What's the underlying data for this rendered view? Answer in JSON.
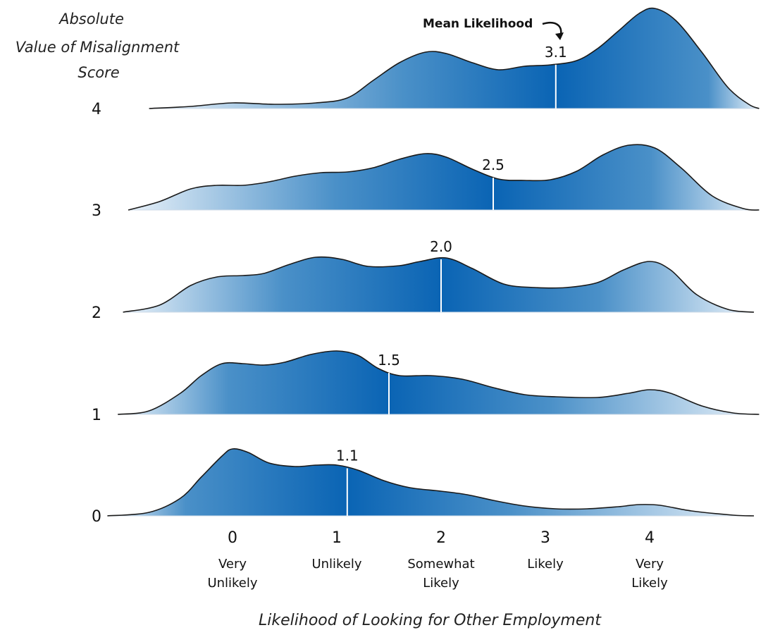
{
  "chart_data": {
    "type": "ridgeline",
    "y_title_lines": [
      "Absolute",
      "Value of Misalignment",
      "Score"
    ],
    "xlabel": "Likelihood of Looking for Other Employment",
    "x_ticks": [
      {
        "value": "0",
        "lines": [
          "Very",
          "Unlikely"
        ]
      },
      {
        "value": "1",
        "lines": [
          "Unlikely"
        ]
      },
      {
        "value": "2",
        "lines": [
          "Somewhat",
          "Likely"
        ]
      },
      {
        "value": "3",
        "lines": [
          "Likely"
        ]
      },
      {
        "value": "4",
        "lines": [
          "Very",
          "Likely"
        ]
      }
    ],
    "xlim": [
      -1.2,
      5.1
    ],
    "annotation": "Mean Likelihood",
    "series": [
      {
        "name": "0",
        "mean": 1.1,
        "mean_label": "1.1",
        "density_x": [
          -1.2,
          -0.8,
          -0.5,
          -0.3,
          -0.1,
          0.0,
          0.15,
          0.35,
          0.6,
          0.8,
          1.0,
          1.2,
          1.45,
          1.7,
          2.0,
          2.25,
          2.5,
          2.8,
          3.1,
          3.4,
          3.7,
          3.9,
          4.1,
          4.4,
          4.8,
          5.0
        ],
        "density_y": [
          0.0,
          0.05,
          0.25,
          0.55,
          0.85,
          0.95,
          0.9,
          0.75,
          0.7,
          0.72,
          0.72,
          0.65,
          0.5,
          0.4,
          0.35,
          0.3,
          0.22,
          0.14,
          0.1,
          0.1,
          0.13,
          0.16,
          0.15,
          0.07,
          0.01,
          0.0
        ]
      },
      {
        "name": "1",
        "mean": 1.5,
        "mean_label": "1.5",
        "density_x": [
          -1.1,
          -0.8,
          -0.5,
          -0.3,
          -0.1,
          0.1,
          0.3,
          0.5,
          0.75,
          1.0,
          1.2,
          1.4,
          1.6,
          1.9,
          2.2,
          2.5,
          2.8,
          3.1,
          3.5,
          3.8,
          4.0,
          4.2,
          4.5,
          4.8,
          5.05
        ],
        "density_y": [
          0.0,
          0.05,
          0.3,
          0.55,
          0.72,
          0.72,
          0.7,
          0.74,
          0.85,
          0.9,
          0.84,
          0.65,
          0.55,
          0.55,
          0.5,
          0.38,
          0.28,
          0.25,
          0.24,
          0.3,
          0.35,
          0.3,
          0.12,
          0.02,
          0.0
        ]
      },
      {
        "name": "2",
        "mean": 2.0,
        "mean_label": "2.0",
        "density_x": [
          -1.05,
          -0.7,
          -0.4,
          -0.15,
          0.1,
          0.3,
          0.55,
          0.8,
          1.05,
          1.3,
          1.6,
          1.8,
          2.05,
          2.3,
          2.6,
          2.9,
          3.2,
          3.5,
          3.75,
          4.0,
          4.2,
          4.45,
          4.75,
          5.0
        ],
        "density_y": [
          0.0,
          0.1,
          0.38,
          0.5,
          0.52,
          0.55,
          0.68,
          0.78,
          0.75,
          0.65,
          0.66,
          0.72,
          0.77,
          0.62,
          0.4,
          0.35,
          0.35,
          0.42,
          0.6,
          0.72,
          0.6,
          0.25,
          0.04,
          0.0
        ]
      },
      {
        "name": "3",
        "mean": 2.5,
        "mean_label": "2.5",
        "density_x": [
          -1.0,
          -0.7,
          -0.4,
          -0.15,
          0.1,
          0.35,
          0.6,
          0.85,
          1.1,
          1.35,
          1.6,
          1.85,
          2.05,
          2.3,
          2.55,
          2.8,
          3.05,
          3.3,
          3.55,
          3.8,
          4.05,
          4.3,
          4.6,
          4.9,
          5.05
        ],
        "density_y": [
          0.0,
          0.12,
          0.3,
          0.35,
          0.35,
          0.4,
          0.48,
          0.53,
          0.54,
          0.6,
          0.72,
          0.8,
          0.75,
          0.58,
          0.44,
          0.42,
          0.43,
          0.55,
          0.78,
          0.92,
          0.88,
          0.6,
          0.2,
          0.02,
          0.0
        ]
      },
      {
        "name": "4",
        "mean": 3.1,
        "mean_label": "3.1",
        "density_x": [
          -0.8,
          -0.4,
          0.0,
          0.4,
          0.8,
          1.1,
          1.35,
          1.6,
          1.85,
          2.05,
          2.3,
          2.55,
          2.8,
          3.05,
          3.3,
          3.5,
          3.7,
          3.9,
          4.05,
          4.25,
          4.5,
          4.75,
          4.95,
          5.05
        ],
        "density_y": [
          0.0,
          0.03,
          0.08,
          0.06,
          0.08,
          0.15,
          0.4,
          0.65,
          0.8,
          0.78,
          0.65,
          0.55,
          0.6,
          0.62,
          0.68,
          0.85,
          1.1,
          1.35,
          1.42,
          1.25,
          0.8,
          0.3,
          0.06,
          0.0
        ]
      }
    ],
    "gradient_colors": {
      "edge": "#e8f1f9",
      "mid": "#4a90c8",
      "peak": "#0a64b4"
    },
    "outline_color": "#1a1a1a",
    "mean_line_color": "#ffffff"
  }
}
